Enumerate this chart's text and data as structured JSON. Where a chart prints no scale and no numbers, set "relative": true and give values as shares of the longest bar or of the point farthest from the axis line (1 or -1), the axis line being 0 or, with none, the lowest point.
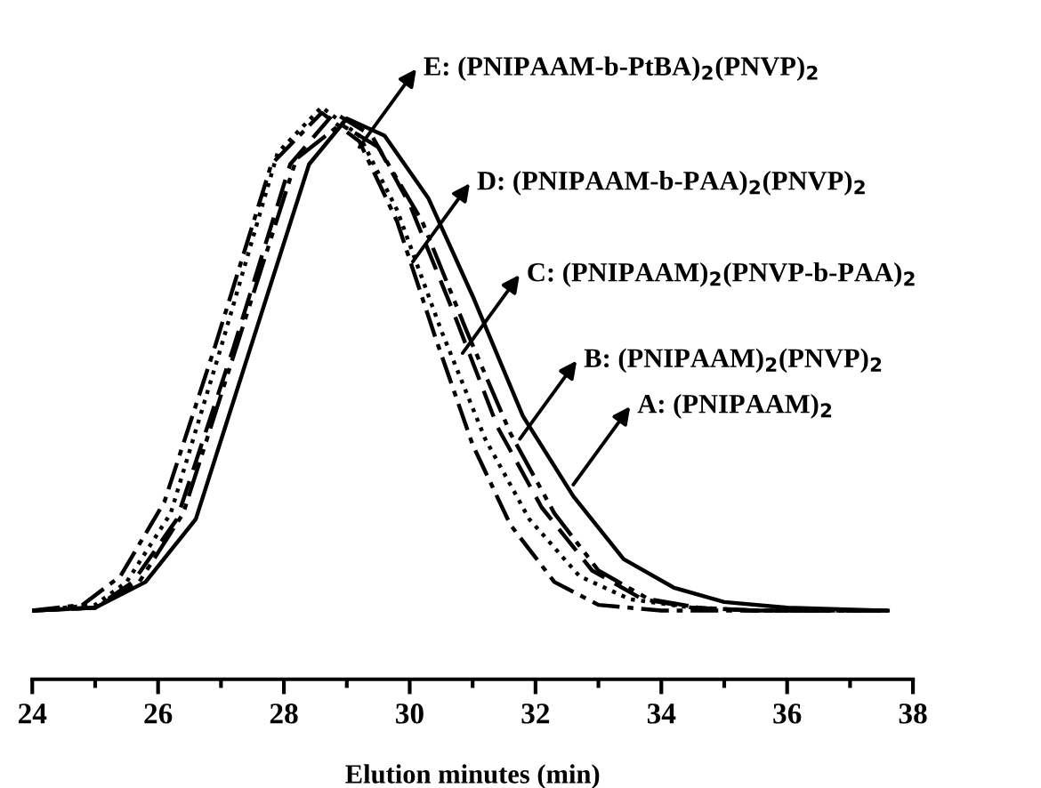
{
  "chart_data": {
    "type": "line",
    "relative": true,
    "xlabel": "Elution minutes (min)",
    "xlim": [
      24,
      38
    ],
    "xticks": [
      24,
      {
        "value": 25,
        "label": null
      },
      26,
      {
        "value": 27,
        "label": null
      },
      28,
      {
        "value": 29,
        "label": null
      },
      30,
      {
        "value": 31,
        "label": null
      },
      32,
      {
        "value": 33,
        "label": null
      },
      34,
      {
        "value": 35,
        "label": null
      },
      36,
      {
        "value": 37,
        "label": null
      },
      38
    ],
    "grid": false,
    "legend": false,
    "marker": "none",
    "series": [
      {
        "color": "#000000",
        "line_style": "solid",
        "x": [
          24,
          25,
          25.8,
          26.6,
          27.5,
          28.4,
          29.0,
          29.6,
          30.3,
          31.0,
          31.8,
          32.6,
          33.4,
          34.2,
          35,
          36,
          37.6
        ],
        "values": [
          0.12,
          0.125,
          0.17,
          0.28,
          0.59,
          0.9,
          0.98,
          0.95,
          0.84,
          0.67,
          0.46,
          0.32,
          0.21,
          0.16,
          0.135,
          0.125,
          0.12
        ]
      },
      {
        "color": "#000000",
        "line_style": "dashed",
        "x": [
          24,
          25,
          25.6,
          26.3,
          27.2,
          28.1,
          28.8,
          29.4,
          30.0,
          30.7,
          31.4,
          32.1,
          32.9,
          33.7,
          34.5,
          35.5,
          37.6
        ],
        "values": [
          0.12,
          0.125,
          0.17,
          0.28,
          0.58,
          0.9,
          0.99,
          0.95,
          0.83,
          0.64,
          0.44,
          0.3,
          0.19,
          0.14,
          0.125,
          0.12,
          0.12
        ]
      },
      {
        "color": "#000000",
        "line_style": "dotted",
        "x": [
          24,
          25,
          25.5,
          26.2,
          27.0,
          27.9,
          28.6,
          29.2,
          29.8,
          30.5,
          31.2,
          31.9,
          32.7,
          33.5,
          34.5,
          35.5,
          37.6
        ],
        "values": [
          0.12,
          0.13,
          0.17,
          0.29,
          0.58,
          0.92,
          1.0,
          0.95,
          0.82,
          0.61,
          0.42,
          0.28,
          0.18,
          0.14,
          0.125,
          0.12,
          0.12
        ]
      },
      {
        "color": "#000000",
        "line_style": "dashdot",
        "x": [
          24,
          24.8,
          25.4,
          26.1,
          26.9,
          27.8,
          28.6,
          29.2,
          29.8,
          30.4,
          31.0,
          31.6,
          32.3,
          33.0,
          34,
          37.6
        ],
        "values": [
          0.12,
          0.13,
          0.18,
          0.31,
          0.58,
          0.9,
          0.99,
          0.94,
          0.8,
          0.6,
          0.41,
          0.27,
          0.17,
          0.13,
          0.12,
          0.12
        ]
      },
      {
        "color": "#000000",
        "line_style": "dashdotdot",
        "x": [
          24,
          25,
          25.7,
          26.4,
          27.3,
          28.2,
          28.9,
          29.5,
          30.2,
          30.9,
          31.6,
          32.3,
          33.0,
          33.8,
          34.6,
          35.5,
          37.6
        ],
        "values": [
          0.12,
          0.125,
          0.17,
          0.29,
          0.6,
          0.91,
          0.97,
          0.93,
          0.8,
          0.61,
          0.43,
          0.29,
          0.19,
          0.14,
          0.125,
          0.12,
          0.12
        ]
      }
    ],
    "annotations": [
      {
        "text": "E: (PNIPAAM-b-PtBA)$_{2}$(PNVP)$_{2}$",
        "x": 29.2,
        "y": 0.93
      },
      {
        "text": "D: (PNIPAAM-b-PAA)$_{2}$(PNVP)$_{2}$",
        "x": 30.05,
        "y": 0.73
      },
      {
        "text": "C: (PNIPAAM)$_{2}$(PNVP-b-PAA)$_{2}$",
        "x": 30.84,
        "y": 0.57
      },
      {
        "text": "B: (PNIPAAM)$_{2}$(PNVP)$_{2}$",
        "x": 31.75,
        "y": 0.42
      },
      {
        "text": "A: (PNIPAAM)$_{2}$",
        "x": 32.6,
        "y": 0.34
      }
    ]
  }
}
